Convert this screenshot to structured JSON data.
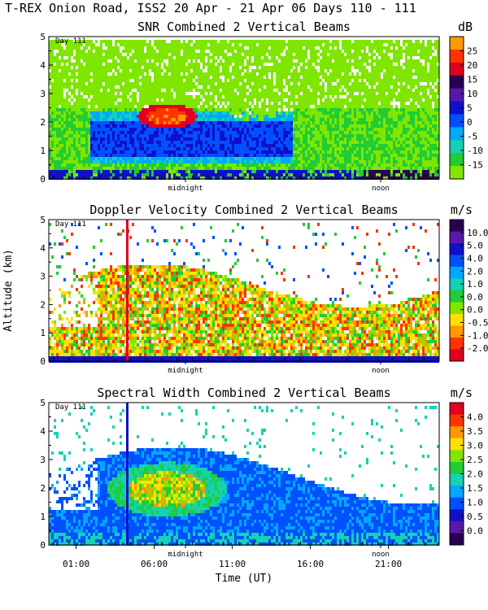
{
  "main_title": "T-REX Onion Road, ISS2  20 Apr - 21 Apr 06 Days 110 - 111",
  "colors": {
    "scale": [
      "#7fe600",
      "#22cc33",
      "#10c8a8",
      "#0098ff",
      "#0040ff",
      "#1010c8",
      "#5a18a8",
      "#2a0050"
    ],
    "plot_bg": "#ffffff"
  },
  "chart_data": [
    {
      "type": "heatmap",
      "title": "SNR Combined 2 Vertical Beams",
      "units": "dB",
      "ylabel": "",
      "xlabel": "",
      "ylim": [
        0,
        5
      ],
      "y_ticks": [
        "0",
        "1",
        "2",
        "3",
        "4",
        "5"
      ],
      "day_label": "Day 111",
      "markers": [
        "midnight",
        "noon"
      ],
      "show_time_ticks": false,
      "colorbar": {
        "ticks": [
          "25",
          "20",
          "15",
          "10",
          "5",
          "0",
          "-5",
          "-10",
          "-15"
        ],
        "colors": [
          "#ff9900",
          "#ff3300",
          "#e00020",
          "#2a0050",
          "#5a18a8",
          "#1010c8",
          "#0050ff",
          "#00a8ff",
          "#14d2b4",
          "#22cc33",
          "#7fe600"
        ]
      }
    },
    {
      "type": "heatmap",
      "title": "Doppler Velocity Combined 2 Vertical Beams",
      "units": "m/s",
      "ylabel": "Altitude (km)",
      "xlabel": "",
      "ylim": [
        0,
        5
      ],
      "y_ticks": [
        "0",
        "1",
        "2",
        "3",
        "4",
        "5"
      ],
      "day_label": "Day 111",
      "markers": [
        "midnight",
        "noon"
      ],
      "show_time_ticks": false,
      "colorbar": {
        "ticks": [
          "10.0",
          "5.0",
          "4.0",
          "2.0",
          "1.0",
          "0.0",
          "0.0",
          "-0.5",
          "-1.0",
          "-2.0"
        ],
        "colors": [
          "#2a0050",
          "#5a18a8",
          "#1010c8",
          "#0050ff",
          "#00a8ff",
          "#14d2b4",
          "#22cc33",
          "#7fe600",
          "#ffe000",
          "#ff9900",
          "#ff3300",
          "#e00020"
        ]
      }
    },
    {
      "type": "heatmap",
      "title": "Spectral Width Combined 2 Vertical Beams",
      "units": "m/s",
      "ylabel": "",
      "xlabel": "Time (UT)",
      "ylim": [
        0,
        5
      ],
      "y_ticks": [
        "0",
        "1",
        "2",
        "3",
        "4",
        "5"
      ],
      "day_label": "Day 111",
      "markers": [
        "midnight",
        "noon"
      ],
      "show_time_ticks": true,
      "x_ticks": [
        "01:00",
        "06:00",
        "11:00",
        "16:00",
        "21:00"
      ],
      "colorbar": {
        "ticks": [
          "4.0",
          "3.5",
          "3.0",
          "2.5",
          "2.0",
          "1.5",
          "1.0",
          "0.5",
          "0.0"
        ],
        "colors": [
          "#e00020",
          "#ff3300",
          "#ff9900",
          "#ffe000",
          "#7fe600",
          "#22cc33",
          "#14d2b4",
          "#00a8ff",
          "#0050ff",
          "#1010c8",
          "#5a18a8",
          "#2a0050"
        ]
      }
    }
  ]
}
